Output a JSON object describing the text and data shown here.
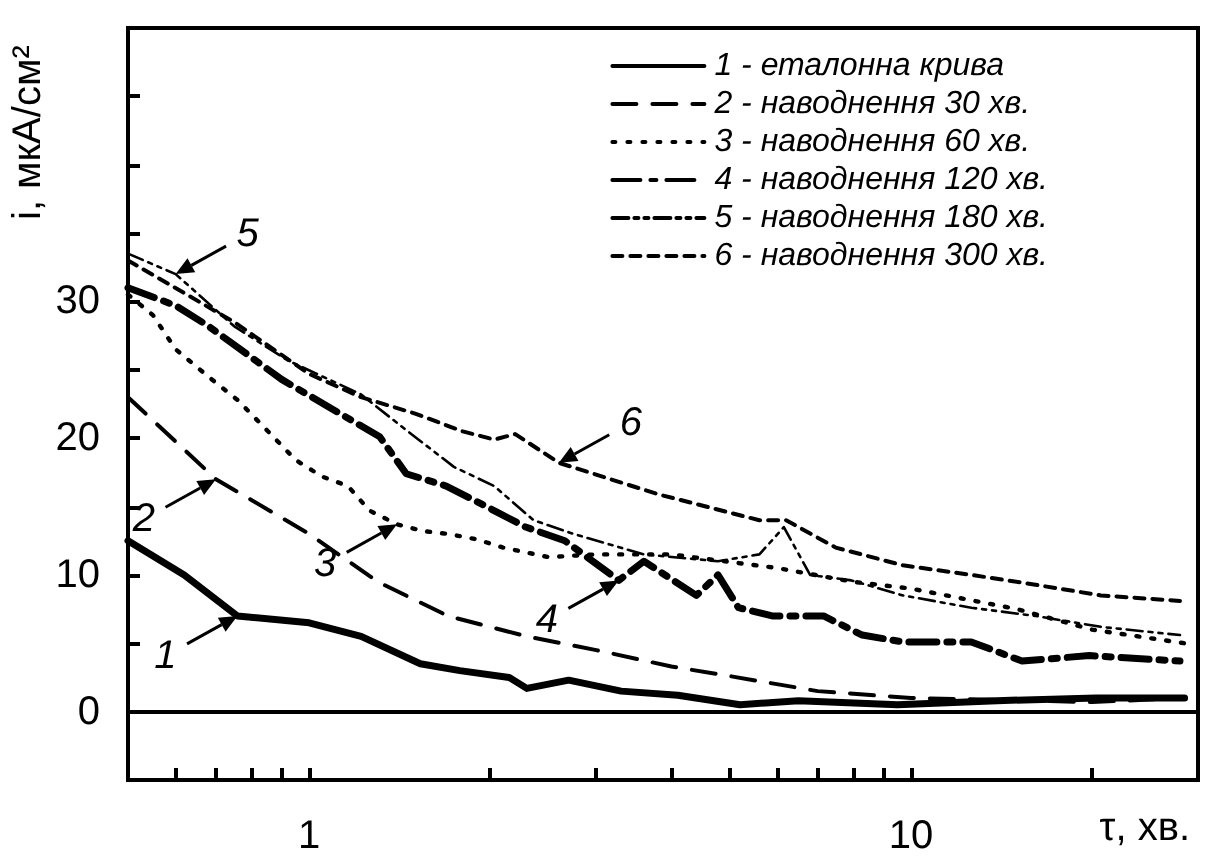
{
  "chart_data": {
    "type": "line",
    "xlabel": "τ, хв.",
    "ylabel": "i, мкА/см²",
    "log": "x",
    "xlim": [
      0.5,
      30
    ],
    "xticks": [
      {
        "value": 0.6,
        "label": null
      },
      {
        "value": 0.7,
        "label": null
      },
      {
        "value": 0.8,
        "label": null
      },
      {
        "value": 0.9,
        "label": null
      },
      1,
      {
        "value": 2,
        "label": null
      },
      {
        "value": 3,
        "label": null
      },
      {
        "value": 4,
        "label": null
      },
      {
        "value": 5,
        "label": null
      },
      {
        "value": 6,
        "label": null
      },
      {
        "value": 7,
        "label": null
      },
      {
        "value": 8,
        "label": null
      },
      {
        "value": 9,
        "label": null
      },
      10,
      {
        "value": 20,
        "label": null
      }
    ],
    "ylim": [
      -5,
      50
    ],
    "yticks": [
      0,
      {
        "value": 5,
        "label": null
      },
      10,
      {
        "value": 15,
        "label": null
      },
      20,
      {
        "value": 25,
        "label": null
      },
      30,
      {
        "value": 35,
        "label": null
      },
      {
        "value": 40,
        "label": null
      },
      {
        "value": 45,
        "label": null
      }
    ],
    "grid": false,
    "marker": "none",
    "legend": "top right",
    "ref_lines": [
      {
        "axis": "y",
        "value": 0,
        "color": "#000000"
      }
    ],
    "series": [
      {
        "name": "1 - еталонна крива",
        "color": "#000000",
        "line_style": "solid",
        "x": [
          0.5,
          0.62,
          0.76,
          1.0,
          1.22,
          1.53,
          1.78,
          2.15,
          2.3,
          2.7,
          3.3,
          4.1,
          5.2,
          6.5,
          9.5,
          13.9,
          20.3,
          28.5
        ],
        "values": [
          12.5,
          10,
          7,
          6.5,
          5.5,
          3.5,
          3,
          2.5,
          1.7,
          2.3,
          1.5,
          1.2,
          0.5,
          0.8,
          0.5,
          0.8,
          1,
          1
        ]
      },
      {
        "name": "2 - наводнення 30 хв.",
        "color": "#000000",
        "line_style": "dashed",
        "x": [
          0.5,
          0.7,
          1.0,
          1.3,
          1.7,
          2.3,
          3,
          4,
          5,
          7,
          10,
          20,
          28.5
        ],
        "values": [
          23,
          17,
          13,
          9.5,
          7,
          5.5,
          4.5,
          3.3,
          2.6,
          1.5,
          1,
          0.7,
          1
        ]
      },
      {
        "name": "3 - наводнення 60 хв.",
        "color": "#000000",
        "line_style": "dotted",
        "x": [
          0.5,
          0.55,
          0.6,
          0.68,
          0.76,
          0.85,
          0.95,
          1.05,
          1.16,
          1.26,
          1.4,
          1.55,
          1.7,
          1.9,
          2.1,
          2.5,
          3,
          4,
          6,
          8,
          10,
          15,
          20,
          28.5
        ],
        "values": [
          30.5,
          29,
          26.5,
          24.5,
          22.8,
          20.6,
          18.4,
          17.2,
          16.5,
          14.7,
          13.7,
          13.2,
          13,
          12.6,
          12,
          11.3,
          11.5,
          11.5,
          10.5,
          9.5,
          9,
          7.5,
          6,
          5
        ]
      },
      {
        "name": "4 - наводнення 120 хв.",
        "color": "#000000",
        "line_style": "dashed",
        "x": [
          0.5,
          0.6,
          0.68,
          0.9,
          1.31,
          1.45,
          1.69,
          1.97,
          2.29,
          2.66,
          3.27,
          3.6,
          4.4,
          4.78,
          5.17,
          5.88,
          7.16,
          8.3,
          9.7,
          12.6,
          15.3,
          19.8,
          28
        ],
        "values": [
          31,
          29.7,
          28.2,
          24.3,
          20.1,
          17.4,
          16.5,
          15,
          13.5,
          12.5,
          9.6,
          11,
          8.5,
          10,
          7.6,
          7,
          7,
          5.6,
          5.1,
          5.1,
          3.7,
          4.1,
          3.7
        ]
      },
      {
        "name": "5 - наводнення 180 хв.",
        "color": "#000000",
        "line_style": "dashed",
        "x": [
          0.5,
          0.6,
          0.75,
          0.92,
          1.22,
          1.42,
          1.74,
          2.03,
          2.36,
          2.75,
          3.6,
          4.78,
          5.6,
          6.15,
          6.8,
          7.96,
          9.7,
          12.6,
          16.1,
          20.7,
          28
        ],
        "values": [
          33.5,
          32,
          28.2,
          25.7,
          23.2,
          20.9,
          17.9,
          16.5,
          14,
          13,
          11.5,
          11,
          11.5,
          13.5,
          10,
          9.6,
          8.5,
          7.6,
          7,
          6.2,
          5.6
        ]
      },
      {
        "name": "6 - наводнення 300 хв.",
        "color": "#000000",
        "line_style": "dashed",
        "x": [
          0.5,
          0.75,
          1.0,
          1.22,
          1.5,
          1.8,
          2.03,
          2.2,
          2.6,
          3.8,
          5.6,
          6.2,
          7.5,
          9.7,
          12.6,
          16,
          20.7,
          28
        ],
        "values": [
          33,
          28.5,
          24.7,
          23,
          21.8,
          20.5,
          19.9,
          20.3,
          18.2,
          15.9,
          14,
          14,
          12,
          10.7,
          10,
          9.3,
          8.5,
          8.1
        ]
      }
    ],
    "annotations": [
      {
        "text": "1",
        "x": 0.76,
        "y": 7
      },
      {
        "text": "2",
        "x": 0.7,
        "y": 17
      },
      {
        "text": "3",
        "x": 1.4,
        "y": 13.7
      },
      {
        "text": "4",
        "x": 3.27,
        "y": 9.6
      },
      {
        "text": "5",
        "x": 0.6,
        "y": 32
      },
      {
        "text": "6",
        "x": 2.6,
        "y": 18.2
      }
    ]
  }
}
